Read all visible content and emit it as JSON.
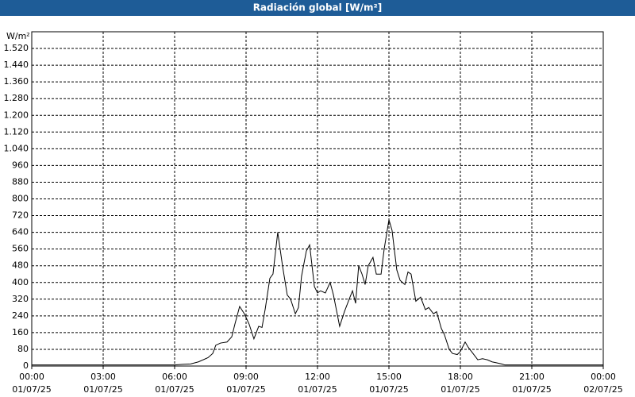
{
  "chart_data": {
    "type": "line",
    "title": "Radiación global [W/m²]",
    "y_label": "W/m²",
    "color": "#000000",
    "grid": true,
    "x": [
      0,
      6.0,
      6.33,
      6.67,
      7.0,
      7.2,
      7.4,
      7.6,
      7.73,
      7.93,
      8.2,
      8.4,
      8.53,
      8.73,
      8.93,
      9.13,
      9.33,
      9.53,
      9.67,
      9.8,
      10.0,
      10.13,
      10.33,
      10.53,
      10.73,
      10.87,
      11.07,
      11.2,
      11.33,
      11.53,
      11.67,
      11.87,
      12.0,
      12.13,
      12.33,
      12.53,
      12.67,
      12.93,
      13.13,
      13.33,
      13.47,
      13.6,
      13.73,
      13.87,
      14.0,
      14.13,
      14.33,
      14.47,
      14.67,
      14.8,
      15.0,
      15.13,
      15.33,
      15.47,
      15.67,
      15.8,
      15.93,
      16.13,
      16.33,
      16.53,
      16.67,
      16.87,
      17.0,
      17.2,
      17.33,
      17.53,
      17.67,
      17.87,
      18.0,
      18.2,
      18.33,
      18.53,
      18.73,
      18.93,
      19.13,
      19.33,
      19.53,
      19.73,
      19.87,
      20.0,
      24
    ],
    "values": [
      5,
      5,
      8,
      10,
      20,
      30,
      40,
      60,
      100,
      110,
      115,
      140,
      200,
      285,
      250,
      200,
      130,
      190,
      185,
      270,
      420,
      440,
      640,
      480,
      340,
      320,
      250,
      280,
      430,
      550,
      580,
      380,
      350,
      360,
      350,
      400,
      340,
      190,
      260,
      320,
      360,
      300,
      480,
      440,
      390,
      480,
      520,
      440,
      440,
      560,
      700,
      650,
      460,
      410,
      390,
      450,
      440,
      310,
      330,
      270,
      280,
      250,
      260,
      180,
      150,
      80,
      60,
      55,
      70,
      115,
      90,
      60,
      30,
      35,
      30,
      20,
      15,
      10,
      5,
      5,
      5
    ],
    "xlim": [
      0,
      24
    ],
    "xticks": [
      {
        "value": 0,
        "label": [
          "00:00",
          "01/07/25"
        ]
      },
      {
        "value": 3,
        "label": [
          "03:00",
          "01/07/25"
        ]
      },
      {
        "value": 6,
        "label": [
          "06:00",
          "01/07/25"
        ]
      },
      {
        "value": 9,
        "label": [
          "09:00",
          "01/07/25"
        ]
      },
      {
        "value": 12,
        "label": [
          "12:00",
          "01/07/25"
        ]
      },
      {
        "value": 15,
        "label": [
          "15:00",
          "01/07/25"
        ]
      },
      {
        "value": 18,
        "label": [
          "18:00",
          "01/07/25"
        ]
      },
      {
        "value": 21,
        "label": [
          "21:00",
          "01/07/25"
        ]
      },
      {
        "value": 24,
        "label": [
          "00:00",
          "02/07/25"
        ]
      }
    ],
    "ylim": [
      0,
      1600
    ],
    "yticks": [
      0,
      80,
      160,
      240,
      320,
      400,
      480,
      560,
      640,
      720,
      800,
      880,
      960,
      {
        "value": 1040,
        "label": "1.040"
      },
      {
        "value": 1120,
        "label": "1.120"
      },
      {
        "value": 1200,
        "label": "1.200"
      },
      {
        "value": 1280,
        "label": "1.280"
      },
      {
        "value": 1360,
        "label": "1.360"
      },
      {
        "value": 1440,
        "label": "1.440"
      },
      {
        "value": 1520,
        "label": "1.520"
      }
    ]
  }
}
